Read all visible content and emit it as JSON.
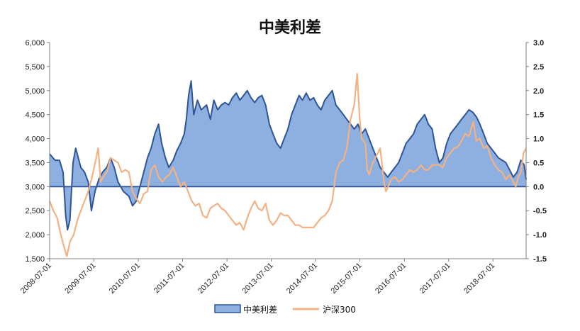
{
  "chart_data": {
    "type": "line",
    "title": "中美利差",
    "x_ticks": [
      "2008-07-01",
      "2009-07-01",
      "2010-07-01",
      "2011-07-01",
      "2012-07-01",
      "2013-07-01",
      "2014-07-01",
      "2015-07-01",
      "2016-07-01",
      "2017-07-01",
      "2018-07-01"
    ],
    "x_range": [
      "2008-07-01",
      "2019-03-31"
    ],
    "left_axis": {
      "ylim": [
        1500,
        6000
      ],
      "ticks": [
        1500,
        2000,
        2500,
        3000,
        3500,
        4000,
        4500,
        5000,
        5500,
        6000
      ],
      "tick_labels": [
        "1,500",
        "2,000",
        "2,500",
        "3,000",
        "3,500",
        "4,000",
        "4,500",
        "5,000",
        "5,500",
        "6,000"
      ]
    },
    "right_axis": {
      "ylim": [
        -1.5,
        3.0
      ],
      "ticks": [
        -1.5,
        -1.0,
        -0.5,
        0.0,
        0.5,
        1.0,
        1.5,
        2.0,
        2.5,
        3.0
      ],
      "tick_labels": [
        "-1.5",
        "-1.0",
        "-0.5",
        "0.0",
        "0.5",
        "1.0",
        "1.5",
        "2.0",
        "2.5",
        "3.0"
      ],
      "negative_color": "#ff0000"
    },
    "series": [
      {
        "name": "中美利差",
        "type": "area",
        "axis": "right",
        "baseline": 0.0,
        "fill_color": "#8db0e0",
        "line_color": "#2f5597",
        "points": [
          [
            "2008-07-01",
            0.68
          ],
          [
            "2008-08-15",
            0.55
          ],
          [
            "2008-09-20",
            0.55
          ],
          [
            "2008-10-20",
            0.3
          ],
          [
            "2008-11-10",
            -0.6
          ],
          [
            "2008-11-25",
            -0.9
          ],
          [
            "2008-12-15",
            -0.7
          ],
          [
            "2009-01-10",
            0.5
          ],
          [
            "2009-02-01",
            0.8
          ],
          [
            "2009-03-15",
            0.4
          ],
          [
            "2009-04-15",
            0.3
          ],
          [
            "2009-05-15",
            0.1
          ],
          [
            "2009-06-10",
            -0.5
          ],
          [
            "2009-07-10",
            -0.1
          ],
          [
            "2009-08-10",
            0.15
          ],
          [
            "2009-09-10",
            0.3
          ],
          [
            "2009-10-15",
            0.4
          ],
          [
            "2009-11-15",
            0.6
          ],
          [
            "2009-12-15",
            0.4
          ],
          [
            "2010-01-15",
            0.1
          ],
          [
            "2010-03-01",
            -0.1
          ],
          [
            "2010-04-15",
            -0.2
          ],
          [
            "2010-05-15",
            -0.4
          ],
          [
            "2010-06-15",
            -0.3
          ],
          [
            "2010-07-15",
            0.0
          ],
          [
            "2010-08-15",
            0.3
          ],
          [
            "2010-09-15",
            0.6
          ],
          [
            "2010-10-15",
            0.8
          ],
          [
            "2010-11-15",
            1.1
          ],
          [
            "2010-12-15",
            1.3
          ],
          [
            "2011-01-10",
            0.9
          ],
          [
            "2011-02-10",
            0.6
          ],
          [
            "2011-03-10",
            0.4
          ],
          [
            "2011-04-15",
            0.55
          ],
          [
            "2011-05-15",
            0.75
          ],
          [
            "2011-06-15",
            0.9
          ],
          [
            "2011-07-15",
            1.1
          ],
          [
            "2011-08-01",
            1.4
          ],
          [
            "2011-08-20",
            1.9
          ],
          [
            "2011-09-10",
            2.2
          ],
          [
            "2011-10-01",
            1.5
          ],
          [
            "2011-11-01",
            1.8
          ],
          [
            "2011-12-01",
            1.6
          ],
          [
            "2012-01-15",
            1.7
          ],
          [
            "2012-02-15",
            1.4
          ],
          [
            "2012-03-15",
            1.8
          ],
          [
            "2012-04-15",
            1.6
          ],
          [
            "2012-05-15",
            1.7
          ],
          [
            "2012-06-15",
            1.75
          ],
          [
            "2012-07-15",
            1.7
          ],
          [
            "2012-08-15",
            1.85
          ],
          [
            "2012-09-15",
            1.95
          ],
          [
            "2012-10-15",
            1.8
          ],
          [
            "2012-11-15",
            1.9
          ],
          [
            "2012-12-15",
            2.0
          ],
          [
            "2013-01-15",
            1.85
          ],
          [
            "2013-02-15",
            1.75
          ],
          [
            "2013-03-15",
            1.85
          ],
          [
            "2013-04-15",
            1.9
          ],
          [
            "2013-05-15",
            1.7
          ],
          [
            "2013-06-15",
            1.3
          ],
          [
            "2013-07-15",
            1.1
          ],
          [
            "2013-08-15",
            0.9
          ],
          [
            "2013-09-15",
            0.8
          ],
          [
            "2013-10-15",
            1.0
          ],
          [
            "2013-11-15",
            1.2
          ],
          [
            "2013-12-15",
            1.5
          ],
          [
            "2014-01-15",
            1.7
          ],
          [
            "2014-02-15",
            1.9
          ],
          [
            "2014-03-15",
            1.8
          ],
          [
            "2014-04-15",
            1.95
          ],
          [
            "2014-05-15",
            1.8
          ],
          [
            "2014-06-15",
            1.85
          ],
          [
            "2014-07-15",
            1.7
          ],
          [
            "2014-08-15",
            1.6
          ],
          [
            "2014-09-15",
            1.8
          ],
          [
            "2014-10-15",
            1.9
          ],
          [
            "2014-11-15",
            2.0
          ],
          [
            "2014-12-15",
            1.7
          ],
          [
            "2015-01-15",
            1.6
          ],
          [
            "2015-02-15",
            1.5
          ],
          [
            "2015-03-15",
            1.4
          ],
          [
            "2015-04-15",
            1.3
          ],
          [
            "2015-05-15",
            1.2
          ],
          [
            "2015-06-15",
            1.3
          ],
          [
            "2015-07-15",
            1.1
          ],
          [
            "2015-08-15",
            1.2
          ],
          [
            "2015-09-15",
            1.0
          ],
          [
            "2015-10-15",
            0.8
          ],
          [
            "2015-11-15",
            0.6
          ],
          [
            "2015-12-15",
            0.4
          ],
          [
            "2016-01-15",
            0.3
          ],
          [
            "2016-02-15",
            0.2
          ],
          [
            "2016-03-15",
            0.3
          ],
          [
            "2016-04-15",
            0.4
          ],
          [
            "2016-05-15",
            0.5
          ],
          [
            "2016-06-15",
            0.7
          ],
          [
            "2016-07-15",
            0.9
          ],
          [
            "2016-08-15",
            1.0
          ],
          [
            "2016-09-15",
            1.1
          ],
          [
            "2016-10-15",
            1.3
          ],
          [
            "2016-11-15",
            1.4
          ],
          [
            "2016-12-15",
            1.5
          ],
          [
            "2017-01-15",
            1.3
          ],
          [
            "2017-02-15",
            1.2
          ],
          [
            "2017-03-15",
            0.8
          ],
          [
            "2017-04-15",
            0.5
          ],
          [
            "2017-05-15",
            0.6
          ],
          [
            "2017-06-15",
            0.9
          ],
          [
            "2017-07-15",
            1.1
          ],
          [
            "2017-08-15",
            1.2
          ],
          [
            "2017-09-15",
            1.3
          ],
          [
            "2017-10-15",
            1.4
          ],
          [
            "2017-11-15",
            1.5
          ],
          [
            "2017-12-15",
            1.6
          ],
          [
            "2018-01-15",
            1.55
          ],
          [
            "2018-02-15",
            1.45
          ],
          [
            "2018-03-15",
            1.3
          ],
          [
            "2018-04-15",
            1.1
          ],
          [
            "2018-05-15",
            0.9
          ],
          [
            "2018-06-15",
            0.8
          ],
          [
            "2018-07-15",
            0.7
          ],
          [
            "2018-08-15",
            0.6
          ],
          [
            "2018-09-15",
            0.55
          ],
          [
            "2018-10-15",
            0.5
          ],
          [
            "2018-11-15",
            0.35
          ],
          [
            "2018-12-15",
            0.2
          ],
          [
            "2019-01-15",
            0.3
          ],
          [
            "2019-02-15",
            0.55
          ],
          [
            "2019-03-15",
            0.45
          ],
          [
            "2019-03-31",
            0.15
          ]
        ]
      },
      {
        "name": "沪深300",
        "type": "line",
        "axis": "left",
        "line_color": "#f4b183",
        "points": [
          [
            "2008-07-01",
            2700
          ],
          [
            "2008-08-01",
            2500
          ],
          [
            "2008-09-01",
            2350
          ],
          [
            "2008-10-01",
            2000
          ],
          [
            "2008-11-01",
            1700
          ],
          [
            "2008-11-20",
            1550
          ],
          [
            "2008-12-15",
            1850
          ],
          [
            "2009-01-15",
            2000
          ],
          [
            "2009-02-15",
            2300
          ],
          [
            "2009-03-15",
            2500
          ],
          [
            "2009-04-15",
            2700
          ],
          [
            "2009-05-15",
            2900
          ],
          [
            "2009-06-15",
            3200
          ],
          [
            "2009-07-20",
            3600
          ],
          [
            "2009-08-05",
            3800
          ],
          [
            "2009-08-25",
            3100
          ],
          [
            "2009-09-15",
            3200
          ],
          [
            "2009-10-15",
            3300
          ],
          [
            "2009-11-15",
            3600
          ],
          [
            "2009-12-15",
            3550
          ],
          [
            "2010-01-15",
            3500
          ],
          [
            "2010-02-15",
            3300
          ],
          [
            "2010-03-15",
            3350
          ],
          [
            "2010-04-15",
            3300
          ],
          [
            "2010-05-15",
            2900
          ],
          [
            "2010-06-15",
            2750
          ],
          [
            "2010-07-15",
            2650
          ],
          [
            "2010-08-15",
            2850
          ],
          [
            "2010-09-15",
            2900
          ],
          [
            "2010-10-15",
            3350
          ],
          [
            "2010-11-15",
            3450
          ],
          [
            "2010-12-15",
            3200
          ],
          [
            "2011-01-15",
            3100
          ],
          [
            "2011-02-15",
            3200
          ],
          [
            "2011-03-15",
            3250
          ],
          [
            "2011-04-15",
            3400
          ],
          [
            "2011-05-15",
            3200
          ],
          [
            "2011-06-15",
            3000
          ],
          [
            "2011-07-15",
            3100
          ],
          [
            "2011-08-15",
            2900
          ],
          [
            "2011-09-15",
            2700
          ],
          [
            "2011-10-15",
            2600
          ],
          [
            "2011-11-15",
            2650
          ],
          [
            "2011-12-15",
            2400
          ],
          [
            "2012-01-15",
            2350
          ],
          [
            "2012-02-15",
            2550
          ],
          [
            "2012-03-15",
            2600
          ],
          [
            "2012-04-15",
            2650
          ],
          [
            "2012-05-15",
            2550
          ],
          [
            "2012-06-15",
            2500
          ],
          [
            "2012-07-15",
            2400
          ],
          [
            "2012-08-15",
            2300
          ],
          [
            "2012-09-15",
            2200
          ],
          [
            "2012-10-15",
            2250
          ],
          [
            "2012-11-15",
            2100
          ],
          [
            "2012-12-15",
            2350
          ],
          [
            "2013-01-15",
            2550
          ],
          [
            "2013-02-15",
            2700
          ],
          [
            "2013-03-15",
            2550
          ],
          [
            "2013-04-15",
            2500
          ],
          [
            "2013-05-15",
            2650
          ],
          [
            "2013-06-15",
            2300
          ],
          [
            "2013-07-15",
            2200
          ],
          [
            "2013-08-15",
            2300
          ],
          [
            "2013-09-15",
            2450
          ],
          [
            "2013-10-15",
            2400
          ],
          [
            "2013-11-15",
            2400
          ],
          [
            "2013-12-15",
            2300
          ],
          [
            "2014-01-15",
            2200
          ],
          [
            "2014-02-15",
            2200
          ],
          [
            "2014-03-15",
            2150
          ],
          [
            "2014-04-15",
            2150
          ],
          [
            "2014-05-15",
            2150
          ],
          [
            "2014-06-15",
            2150
          ],
          [
            "2014-07-15",
            2250
          ],
          [
            "2014-08-15",
            2350
          ],
          [
            "2014-09-15",
            2400
          ],
          [
            "2014-10-15",
            2500
          ],
          [
            "2014-11-15",
            2700
          ],
          [
            "2014-12-15",
            3300
          ],
          [
            "2015-01-15",
            3500
          ],
          [
            "2015-02-15",
            3550
          ],
          [
            "2015-03-15",
            3800
          ],
          [
            "2015-04-15",
            4400
          ],
          [
            "2015-05-15",
            4700
          ],
          [
            "2015-06-08",
            5350
          ],
          [
            "2015-06-30",
            4400
          ],
          [
            "2015-07-15",
            4000
          ],
          [
            "2015-08-15",
            3900
          ],
          [
            "2015-08-30",
            3350
          ],
          [
            "2015-09-15",
            3250
          ],
          [
            "2015-10-15",
            3500
          ],
          [
            "2015-11-15",
            3650
          ],
          [
            "2015-12-15",
            3800
          ],
          [
            "2016-01-15",
            3100
          ],
          [
            "2016-02-01",
            2900
          ],
          [
            "2016-03-15",
            3150
          ],
          [
            "2016-04-15",
            3200
          ],
          [
            "2016-05-15",
            3100
          ],
          [
            "2016-06-15",
            3150
          ],
          [
            "2016-07-15",
            3250
          ],
          [
            "2016-08-15",
            3350
          ],
          [
            "2016-09-15",
            3300
          ],
          [
            "2016-10-15",
            3350
          ],
          [
            "2016-11-15",
            3450
          ],
          [
            "2016-12-15",
            3350
          ],
          [
            "2017-01-15",
            3350
          ],
          [
            "2017-02-15",
            3450
          ],
          [
            "2017-03-15",
            3450
          ],
          [
            "2017-04-15",
            3450
          ],
          [
            "2017-05-15",
            3400
          ],
          [
            "2017-06-15",
            3600
          ],
          [
            "2017-07-15",
            3700
          ],
          [
            "2017-08-15",
            3800
          ],
          [
            "2017-09-15",
            3830
          ],
          [
            "2017-10-15",
            3950
          ],
          [
            "2017-11-15",
            4100
          ],
          [
            "2017-12-15",
            4050
          ],
          [
            "2018-01-20",
            4350
          ],
          [
            "2018-02-15",
            3950
          ],
          [
            "2018-03-15",
            4000
          ],
          [
            "2018-04-15",
            3800
          ],
          [
            "2018-05-15",
            3850
          ],
          [
            "2018-06-15",
            3600
          ],
          [
            "2018-07-15",
            3450
          ],
          [
            "2018-08-15",
            3350
          ],
          [
            "2018-09-15",
            3300
          ],
          [
            "2018-10-15",
            3150
          ],
          [
            "2018-11-15",
            3250
          ],
          [
            "2018-12-15",
            3100
          ],
          [
            "2019-01-05",
            3000
          ],
          [
            "2019-01-25",
            3200
          ],
          [
            "2019-02-15",
            3300
          ],
          [
            "2019-03-10",
            3700
          ],
          [
            "2019-03-31",
            3800
          ]
        ]
      }
    ],
    "legend": {
      "placement": "bottom",
      "entries": [
        {
          "name": "中美利差",
          "marker": "area"
        },
        {
          "name": "沪深300",
          "marker": "line"
        }
      ]
    }
  }
}
